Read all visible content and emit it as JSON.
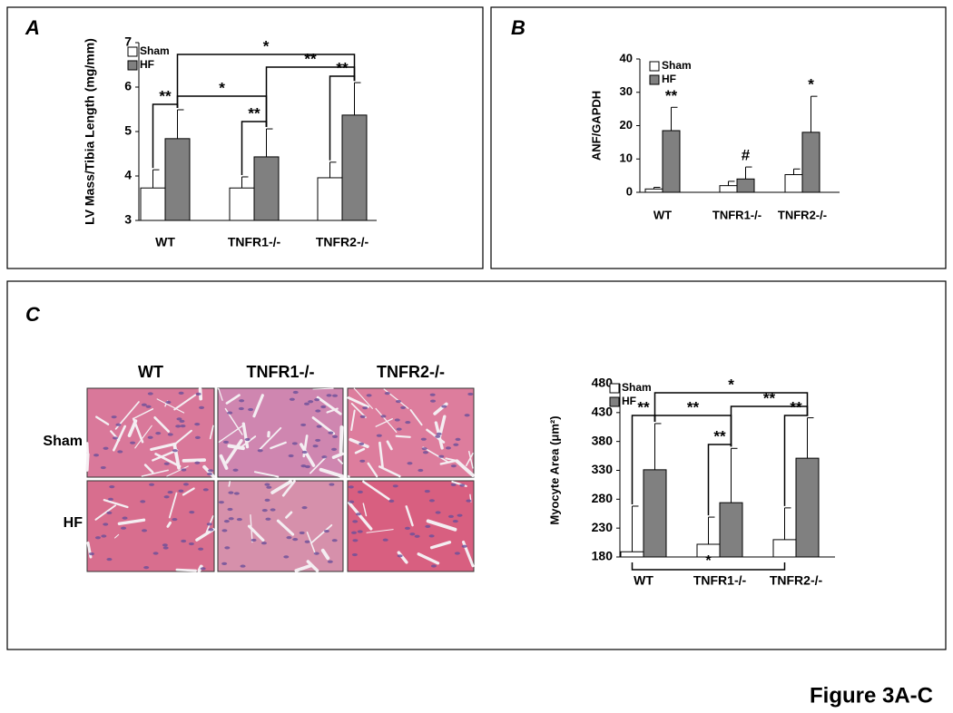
{
  "figure_label": "Figure 3A-C",
  "histology": {
    "panel": "C",
    "columns": [
      "WT",
      "TNFR1-/-",
      "TNFR2-/-"
    ],
    "rows": [
      "Sham",
      "HF"
    ]
  },
  "chart_data": [
    {
      "type": "bar",
      "panel": "A",
      "y_label": "LV Mass/Tibia Length (mg/mm)",
      "categories": [
        "WT",
        "TNFR1-/-",
        "TNFR2-/-"
      ],
      "series": [
        {
          "name": "Sham",
          "color": "#ffffff",
          "values": [
            3.73,
            3.73,
            3.96
          ],
          "errors": [
            0.41,
            0.25,
            0.35
          ]
        },
        {
          "name": "HF",
          "color": "#808080",
          "values": [
            4.84,
            4.43,
            5.37
          ],
          "errors": [
            0.65,
            0.63,
            0.73
          ]
        }
      ],
      "ylim": [
        3,
        7
      ],
      "yticks": [
        3,
        4,
        5,
        6,
        7
      ],
      "annotations": [
        "**",
        "*",
        "**",
        "*",
        "**",
        "**"
      ]
    },
    {
      "type": "bar",
      "panel": "B",
      "y_label": "ANF/GAPDH",
      "categories": [
        "WT",
        "TNFR1-/-",
        "TNFR2-/-"
      ],
      "series": [
        {
          "name": "Sham",
          "color": "#ffffff",
          "values": [
            1,
            2,
            5.3
          ],
          "errors": [
            0.5,
            1.3,
            1.7
          ]
        },
        {
          "name": "HF",
          "color": "#808080",
          "values": [
            18.5,
            4,
            18
          ],
          "errors": [
            7,
            3.6,
            10.8
          ]
        }
      ],
      "ylim": [
        0,
        40
      ],
      "yticks": [
        0,
        10,
        20,
        30,
        40
      ],
      "annotations": [
        "**",
        "#",
        "*"
      ]
    },
    {
      "type": "bar",
      "panel": "C",
      "y_label": "Myocyte Area (μm²)",
      "categories": [
        "WT",
        "TNFR1-/-",
        "TNFR2-/-"
      ],
      "series": [
        {
          "name": "Sham",
          "color": "#ffffff",
          "values": [
            189,
            202,
            210
          ],
          "errors": [
            79,
            47,
            55
          ]
        },
        {
          "name": "HF",
          "color": "#808080",
          "values": [
            331,
            274,
            351
          ],
          "errors": [
            80,
            94,
            70
          ]
        }
      ],
      "ylim": [
        180,
        480
      ],
      "yticks": [
        180,
        230,
        280,
        330,
        380,
        430,
        480
      ],
      "annotations": [
        "**",
        "**",
        "**",
        "*",
        "**",
        "**",
        "*"
      ]
    }
  ]
}
